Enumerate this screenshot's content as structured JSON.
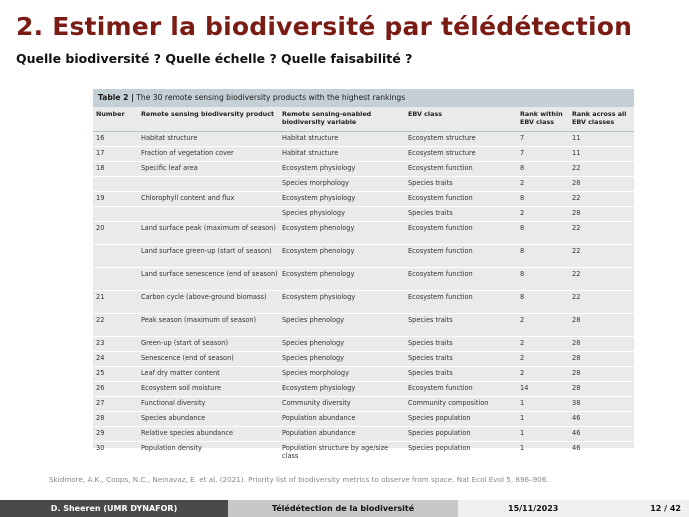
{
  "title": "2. Estimer la biodiversité par télédétection",
  "subtitle": "Quelle biodiversité ? Quelle échelle ? Quelle faisabilité ?",
  "table": {
    "caption_label": "Table 2 |",
    "caption_text": " The 30 remote sensing biodiversity products with the highest rankings",
    "headers": [
      "Number",
      "Remote sensing biodiversity product",
      "Remote sensing-enabled biodiversity variable",
      "EBV class",
      "Rank within EBV class",
      "Rank across all EBV classes"
    ],
    "rows": [
      [
        "16",
        "Habitat structure",
        "Habitat structure",
        "Ecosystem structure",
        "7",
        "11"
      ],
      [
        "17",
        "Fraction of vegetation cover",
        "Habitat structure",
        "Ecosystem structure",
        "7",
        "11"
      ],
      [
        "18",
        "Specific leaf area",
        "Ecosystem physiology",
        "Ecosystem function",
        "8",
        "22"
      ],
      [
        "",
        "",
        "Species morphology",
        "Species traits",
        "2",
        "28"
      ],
      [
        "19",
        "Chlorophyll content and flux",
        "Ecosystem physiology",
        "Ecosystem function",
        "8",
        "22"
      ],
      [
        "",
        "",
        "Species physiology",
        "Species traits",
        "2",
        "28"
      ],
      [
        "20",
        "Land surface peak (maximum of season)",
        "Ecosystem phenology",
        "Ecosystem function",
        "8",
        "22"
      ],
      [
        "",
        "Land surface green-up (start of season)",
        "Ecosystem phenology",
        "Ecosystem function",
        "8",
        "22"
      ],
      [
        "",
        "Land surface senescence (end of season)",
        "Ecosystem phenology",
        "Ecosystem function",
        "8",
        "22"
      ],
      [
        "21",
        "Carbon cycle (above-ground biomass)",
        "Ecosystem physiology",
        "Ecosystem function",
        "8",
        "22"
      ],
      [
        "22",
        "Peak season (maximum of season)",
        "Species phenology",
        "Species traits",
        "2",
        "28"
      ],
      [
        "23",
        "Green-up (start of season)",
        "Species phenology",
        "Species traits",
        "2",
        "28"
      ],
      [
        "24",
        "Senescence (end of season)",
        "Species phenology",
        "Species traits",
        "2",
        "28"
      ],
      [
        "25",
        "Leaf dry matter content",
        "Species morphology",
        "Species traits",
        "2",
        "28"
      ],
      [
        "26",
        "Ecosystem soil moisture",
        "Ecosystem physiology",
        "Ecosystem function",
        "14",
        "28"
      ],
      [
        "27",
        "Functional diversity",
        "Community diversity",
        "Community composition",
        "1",
        "38"
      ],
      [
        "28",
        "Species abundance",
        "Population abundance",
        "Species population",
        "1",
        "46"
      ],
      [
        "29",
        "Relative species abundance",
        "Population abundance",
        "Species population",
        "1",
        "46"
      ],
      [
        "30",
        "Population density",
        "Population structure by age/size class",
        "Species population",
        "1",
        "46"
      ]
    ]
  },
  "citation": "Skidmore, A.K., Coops, N.C., Neinavaz, E. et al. (2021). Priority list of biodiversity metrics to observe from space. Nat Ecol Evol 5, 896–906.",
  "footer": {
    "author": "D. Sheeren (UMR DYNAFOR)",
    "talk": "Télédétection de la biodiversité",
    "date": "15/11/2023",
    "page": "12 / 42"
  },
  "colors": {
    "title": "#7a1b14",
    "caption_bg": "#c5d0d6",
    "table_bg": "#e8eaeb"
  }
}
